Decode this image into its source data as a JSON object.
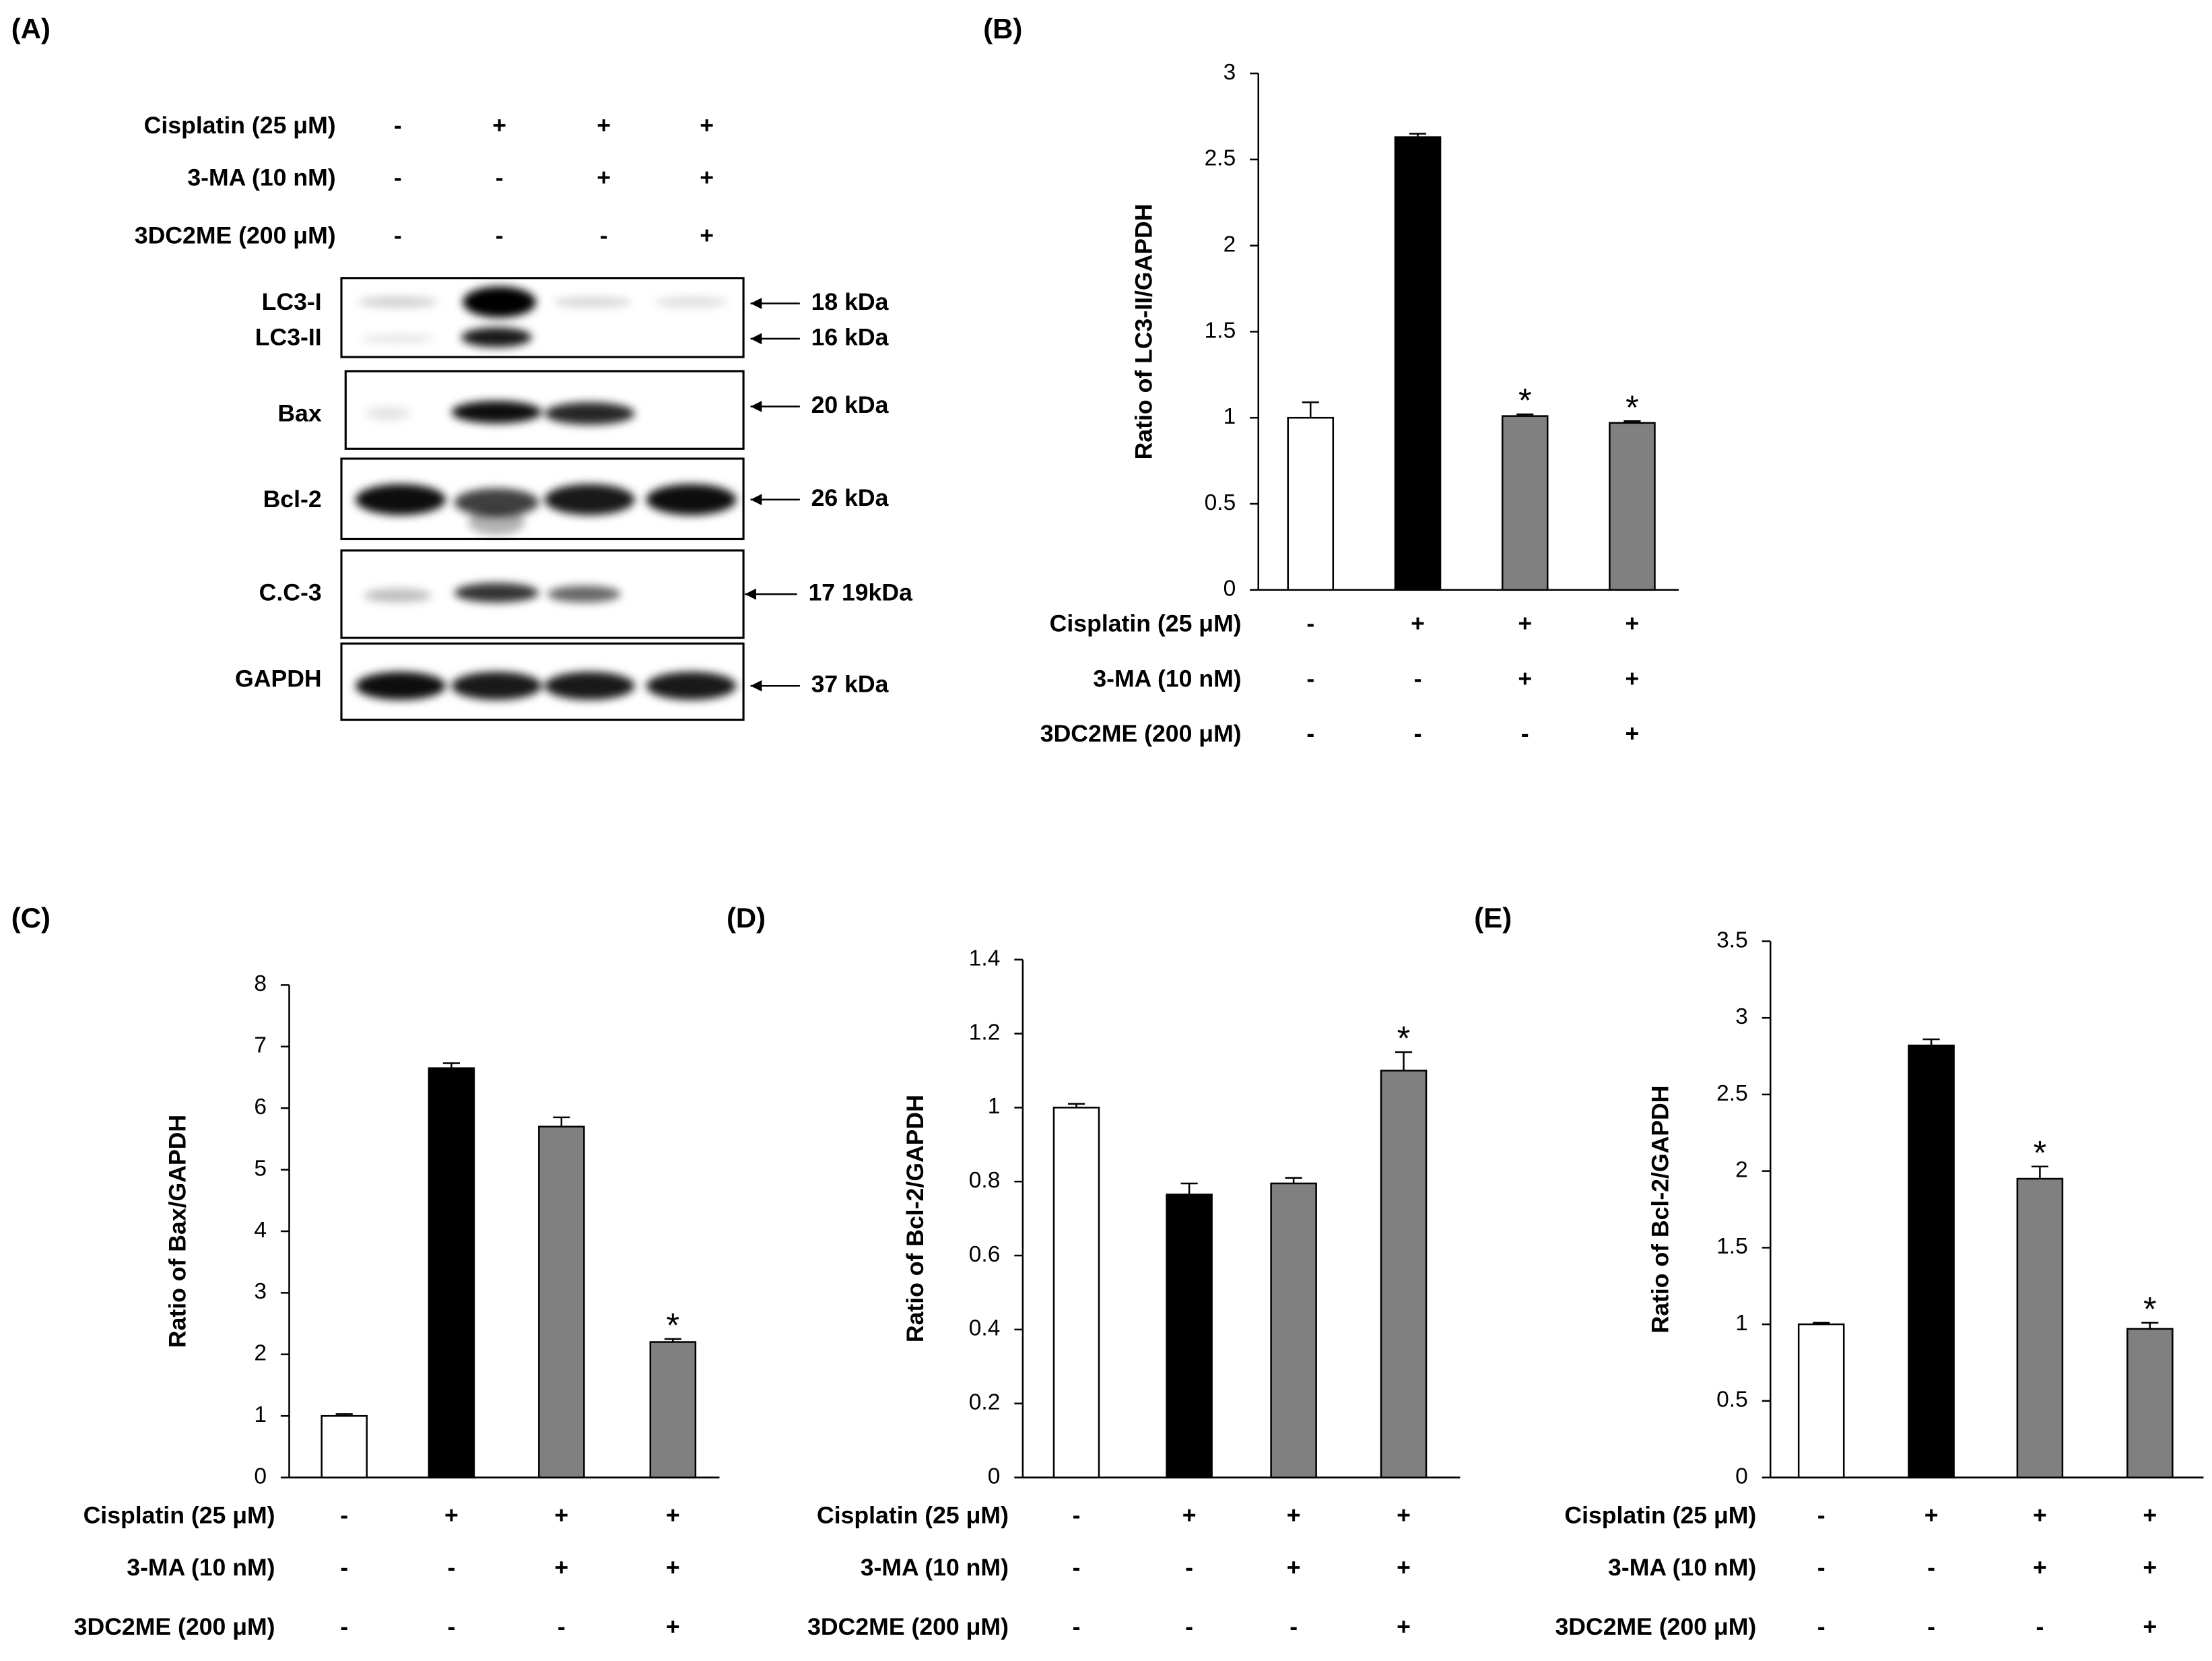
{
  "blot": {
    "panel_label": "(A)",
    "conditions": [
      {
        "label": "Cisplatin (25 μM)",
        "marks": [
          "-",
          "+",
          "+",
          "+"
        ]
      },
      {
        "label": "3-MA (10 nM)",
        "marks": [
          "-",
          "-",
          "+",
          "+"
        ]
      },
      {
        "label": "3DC2ME (200 μM)",
        "marks": [
          "-",
          "-",
          "-",
          "+"
        ]
      }
    ],
    "rows": [
      {
        "label": "LC3-I",
        "kda": "18 kDa"
      },
      {
        "label": "LC3-II",
        "kda": "16 kDa"
      },
      {
        "label": "Bax",
        "kda": "20 kDa"
      },
      {
        "label": "Bcl-2",
        "kda": "26 kDa"
      },
      {
        "label": "C.C-3",
        "kda": "17 19kDa"
      },
      {
        "label": "GAPDH",
        "kda": "37 kDa"
      }
    ]
  },
  "chart_data": [
    {
      "type": "bar",
      "panel_label": "(B)",
      "y_label": "Ratio of LC3-II/GAPDH",
      "values": [
        1.0,
        2.63,
        1.01,
        0.97
      ],
      "errors": [
        0.09,
        0.02,
        0.01,
        0.01
      ],
      "annotations": [
        null,
        null,
        "*",
        "*"
      ],
      "colors": [
        "#ffffff",
        "#000000",
        "#808080",
        "#808080"
      ],
      "ylim": [
        0,
        3
      ],
      "yticks": [
        0,
        0.5,
        1,
        1.5,
        2,
        2.5,
        3
      ],
      "conditions": [
        {
          "label": "Cisplatin (25 μM)",
          "marks": [
            "-",
            "+",
            "+",
            "+"
          ]
        },
        {
          "label": "3-MA (10 nM)",
          "marks": [
            "-",
            "-",
            "+",
            "+"
          ]
        },
        {
          "label": "3DC2ME (200 μM)",
          "marks": [
            "-",
            "-",
            "-",
            "+"
          ]
        }
      ]
    },
    {
      "type": "bar",
      "panel_label": "(C)",
      "y_label": "Ratio of Bax/GAPDH",
      "values": [
        1.0,
        6.65,
        5.7,
        2.2
      ],
      "errors": [
        0.03,
        0.08,
        0.15,
        0.05
      ],
      "annotations": [
        null,
        null,
        null,
        "*"
      ],
      "colors": [
        "#ffffff",
        "#000000",
        "#808080",
        "#808080"
      ],
      "ylim": [
        0,
        8
      ],
      "yticks": [
        0,
        1,
        2,
        3,
        4,
        5,
        6,
        7,
        8
      ],
      "conditions": [
        {
          "label": "Cisplatin (25 μM)",
          "marks": [
            "-",
            "+",
            "+",
            "+"
          ]
        },
        {
          "label": "3-MA (10 nM)",
          "marks": [
            "-",
            "-",
            "+",
            "+"
          ]
        },
        {
          "label": "3DC2ME (200 μM)",
          "marks": [
            "-",
            "-",
            "-",
            "+"
          ]
        }
      ]
    },
    {
      "type": "bar",
      "panel_label": "(D)",
      "y_label": "Ratio of Bcl-2/GAPDH",
      "values": [
        1.0,
        0.765,
        0.795,
        1.1
      ],
      "errors": [
        0.01,
        0.03,
        0.015,
        0.05
      ],
      "annotations": [
        null,
        null,
        null,
        "*"
      ],
      "colors": [
        "#ffffff",
        "#000000",
        "#808080",
        "#808080"
      ],
      "ylim": [
        0,
        1.4
      ],
      "yticks": [
        0,
        0.2,
        0.4,
        0.6,
        0.8,
        1,
        1.2,
        1.4
      ],
      "conditions": [
        {
          "label": "Cisplatin (25 μM)",
          "marks": [
            "-",
            "+",
            "+",
            "+"
          ]
        },
        {
          "label": "3-MA (10 nM)",
          "marks": [
            "-",
            "-",
            "+",
            "+"
          ]
        },
        {
          "label": "3DC2ME (200 μM)",
          "marks": [
            "-",
            "-",
            "-",
            "+"
          ]
        }
      ]
    },
    {
      "type": "bar",
      "panel_label": "(E)",
      "y_label": "Ratio of Bcl-2/GAPDH",
      "values": [
        1.0,
        2.82,
        1.95,
        0.97
      ],
      "errors": [
        0.01,
        0.04,
        0.08,
        0.04
      ],
      "annotations": [
        null,
        null,
        "*",
        "*"
      ],
      "colors": [
        "#ffffff",
        "#000000",
        "#808080",
        "#808080"
      ],
      "ylim": [
        0,
        3.5
      ],
      "yticks": [
        0,
        0.5,
        1,
        1.5,
        2,
        2.5,
        3,
        3.5
      ],
      "conditions": [
        {
          "label": "Cisplatin (25 μM)",
          "marks": [
            "-",
            "+",
            "+",
            "+"
          ]
        },
        {
          "label": "3-MA (10 nM)",
          "marks": [
            "-",
            "-",
            "+",
            "+"
          ]
        },
        {
          "label": "3DC2ME (200 μM)",
          "marks": [
            "-",
            "-",
            "-",
            "+"
          ]
        }
      ]
    }
  ]
}
